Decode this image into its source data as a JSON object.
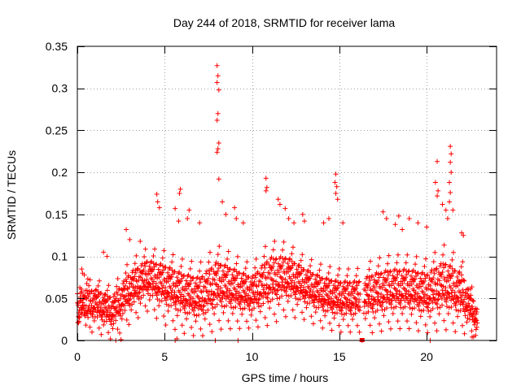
{
  "chart_data": {
    "type": "scatter",
    "title": "Day 244 of 2018, SRMTID for receiver lama",
    "xlabel": "GPS time / hours",
    "ylabel": "SRMTID / TECUs",
    "xlim": [
      0,
      24
    ],
    "ylim": [
      0,
      0.35
    ],
    "xticks": [
      0,
      5,
      10,
      15,
      20
    ],
    "xtick_labels": [
      "0",
      "5",
      "10",
      "15",
      "20"
    ],
    "yticks": [
      0,
      0.05,
      0.1,
      0.15,
      0.2,
      0.25,
      0.3,
      0.35
    ],
    "ytick_labels": [
      "0",
      "0.05",
      "0.1",
      "0.15",
      "0.2",
      "0.25",
      "0.3",
      "0.35"
    ],
    "grid": true,
    "marker": "+",
    "color": "#ff0000",
    "data_gap": [
      16.2,
      16.4
    ],
    "series": [
      {
        "name": "SRMTID",
        "description": "dense cloud of ~0.01-0.09 TECU values with spikes",
        "points": [
          [
            8.0,
            0.327
          ],
          [
            8.05,
            0.315
          ],
          [
            8.0,
            0.307
          ],
          [
            8.1,
            0.298
          ],
          [
            8.05,
            0.27
          ],
          [
            8.0,
            0.262
          ],
          [
            8.1,
            0.235
          ],
          [
            8.05,
            0.228
          ],
          [
            8.0,
            0.224
          ],
          [
            8.1,
            0.192
          ],
          [
            10.8,
            0.193
          ],
          [
            10.85,
            0.182
          ],
          [
            10.8,
            0.178
          ],
          [
            14.8,
            0.198
          ],
          [
            14.75,
            0.188
          ],
          [
            14.85,
            0.183
          ],
          [
            14.8,
            0.175
          ],
          [
            14.9,
            0.168
          ],
          [
            20.6,
            0.213
          ],
          [
            20.5,
            0.188
          ],
          [
            20.65,
            0.178
          ],
          [
            20.6,
            0.172
          ],
          [
            21.35,
            0.231
          ],
          [
            21.4,
            0.222
          ],
          [
            21.35,
            0.212
          ],
          [
            21.4,
            0.2
          ],
          [
            21.3,
            0.188
          ],
          [
            21.35,
            0.176
          ],
          [
            21.3,
            0.165
          ],
          [
            21.1,
            0.155
          ],
          [
            21.2,
            0.145
          ],
          [
            4.55,
            0.174
          ],
          [
            4.6,
            0.165
          ],
          [
            4.7,
            0.158
          ],
          [
            5.6,
            0.157
          ],
          [
            5.8,
            0.142
          ],
          [
            5.9,
            0.18
          ],
          [
            5.85,
            0.175
          ],
          [
            6.4,
            0.155
          ],
          [
            6.3,
            0.145
          ],
          [
            7.0,
            0.14
          ],
          [
            8.3,
            0.165
          ],
          [
            8.5,
            0.15
          ],
          [
            9.0,
            0.158
          ],
          [
            9.1,
            0.145
          ],
          [
            9.5,
            0.14
          ],
          [
            11.5,
            0.168
          ],
          [
            11.6,
            0.162
          ],
          [
            11.9,
            0.157
          ],
          [
            12.1,
            0.145
          ],
          [
            12.4,
            0.14
          ],
          [
            12.9,
            0.15
          ],
          [
            13.0,
            0.142
          ],
          [
            14.1,
            0.14
          ],
          [
            14.4,
            0.145
          ],
          [
            15.2,
            0.14
          ],
          [
            17.5,
            0.153
          ],
          [
            17.7,
            0.145
          ],
          [
            18.2,
            0.138
          ],
          [
            18.4,
            0.148
          ],
          [
            18.6,
            0.132
          ],
          [
            19.0,
            0.145
          ],
          [
            19.5,
            0.14
          ],
          [
            20.0,
            0.135
          ],
          [
            20.9,
            0.162
          ],
          [
            21.5,
            0.155
          ],
          [
            22.0,
            0.128
          ],
          [
            22.1,
            0.125
          ],
          [
            2.8,
            0.132
          ],
          [
            3.0,
            0.12
          ],
          [
            3.6,
            0.118
          ],
          [
            1.5,
            0.105
          ],
          [
            1.7,
            0.1
          ],
          [
            0.25,
            0.085
          ],
          [
            0.3,
            0.08
          ],
          [
            0.4,
            0.078
          ],
          [
            16.3,
            0.0
          ],
          [
            5.6,
            0.0
          ],
          [
            5.7,
            0.002
          ],
          [
            2.2,
            0.0
          ],
          [
            2.5,
            0.001
          ],
          [
            7.9,
            0.0
          ],
          [
            9.2,
            0.0
          ],
          [
            20.2,
            0.0
          ],
          [
            22.6,
            0.004
          ],
          [
            22.8,
            0.006
          ]
        ],
        "density_profile": {
          "hours": [
            0,
            1,
            2,
            3,
            4,
            5,
            6,
            7,
            8,
            9,
            10,
            11,
            12,
            13,
            14,
            15,
            16,
            17,
            18,
            19,
            20,
            21,
            22,
            23
          ],
          "typical_value": [
            0.035,
            0.04,
            0.03,
            0.055,
            0.07,
            0.06,
            0.05,
            0.045,
            0.06,
            0.055,
            0.05,
            0.065,
            0.07,
            0.06,
            0.05,
            0.045,
            0.045,
            0.05,
            0.055,
            0.055,
            0.05,
            0.06,
            0.05,
            0.02
          ],
          "spread": [
            0.025,
            0.025,
            0.025,
            0.03,
            0.03,
            0.035,
            0.035,
            0.035,
            0.04,
            0.035,
            0.03,
            0.04,
            0.035,
            0.03,
            0.03,
            0.03,
            0.03,
            0.035,
            0.035,
            0.035,
            0.035,
            0.04,
            0.035,
            0.015
          ]
        }
      }
    ]
  }
}
